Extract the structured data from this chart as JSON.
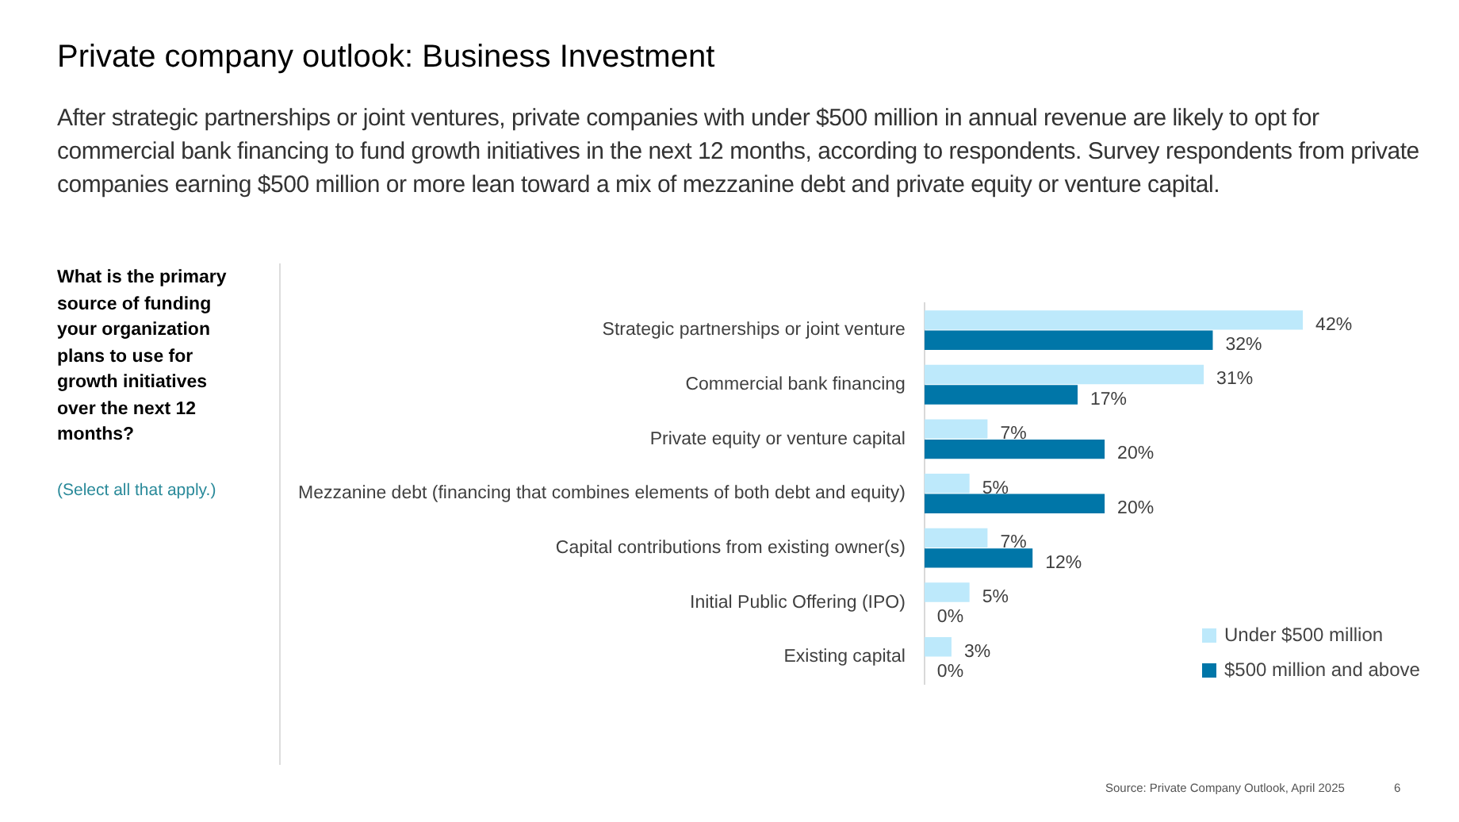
{
  "chart_data": {
    "type": "bar",
    "orientation": "horizontal",
    "title": "Private company outlook: Business Investment",
    "subtitle": "After strategic partnerships or joint ventures, private companies with under $500 million in annual revenue are likely to opt for commercial bank financing to fund growth initiatives in the next 12 months, according to respondents. Survey respondents from private companies earning $500 million or more lean toward a mix of mezzanine debt and private equity or venture capital.",
    "categories": [
      "Strategic partnerships or joint venture",
      "Commercial bank financing",
      "Private equity or venture capital",
      "Mezzanine debt (financing that combines elements of both debt and equity)",
      "Capital contributions from existing owner(s)",
      "Initial Public Offering (IPO)",
      "Existing capital"
    ],
    "series": [
      {
        "name": "Under $500 million",
        "color": "#bde9fb",
        "values": [
          42,
          31,
          7,
          5,
          7,
          5,
          3
        ],
        "value_labels": [
          "42%",
          "31%",
          "7%",
          "5%",
          "7%",
          "5%",
          "3%"
        ]
      },
      {
        "name": "$500 million and above",
        "color": "#0076a8",
        "values": [
          32,
          17,
          20,
          20,
          12,
          0,
          0
        ],
        "value_labels": [
          "32%",
          "17%",
          "20%",
          "20%",
          "12%",
          "0%",
          "0%"
        ]
      }
    ],
    "legend": "bottom right",
    "tick_labels": "y",
    "annotations": [
      "What is the primary source of funding your organization plans to use for growth initiatives over the next 12 months?",
      "(Select all that apply.)",
      "Source: Private Company Outlook, April 2025",
      "6"
    ]
  }
}
